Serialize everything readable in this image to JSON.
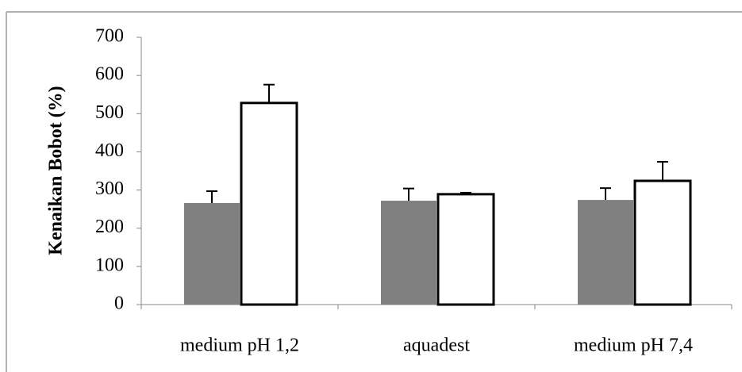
{
  "chart_data": {
    "type": "bar",
    "y_label": "Kenaikan Bobot (%)",
    "categories": [
      "medium pH 1,2",
      "aquadest",
      "medium pH 7,4"
    ],
    "series": [
      {
        "color": "#808080",
        "values": [
          266,
          272,
          274
        ],
        "errors": [
          31,
          32,
          31
        ]
      },
      {
        "color": "#ffffff",
        "values": [
          528,
          289,
          324
        ],
        "errors": [
          48,
          4,
          50
        ]
      }
    ],
    "ylim": [
      0,
      700
    ],
    "yticks": [
      0,
      100,
      200,
      300,
      400,
      500,
      600,
      700
    ]
  }
}
